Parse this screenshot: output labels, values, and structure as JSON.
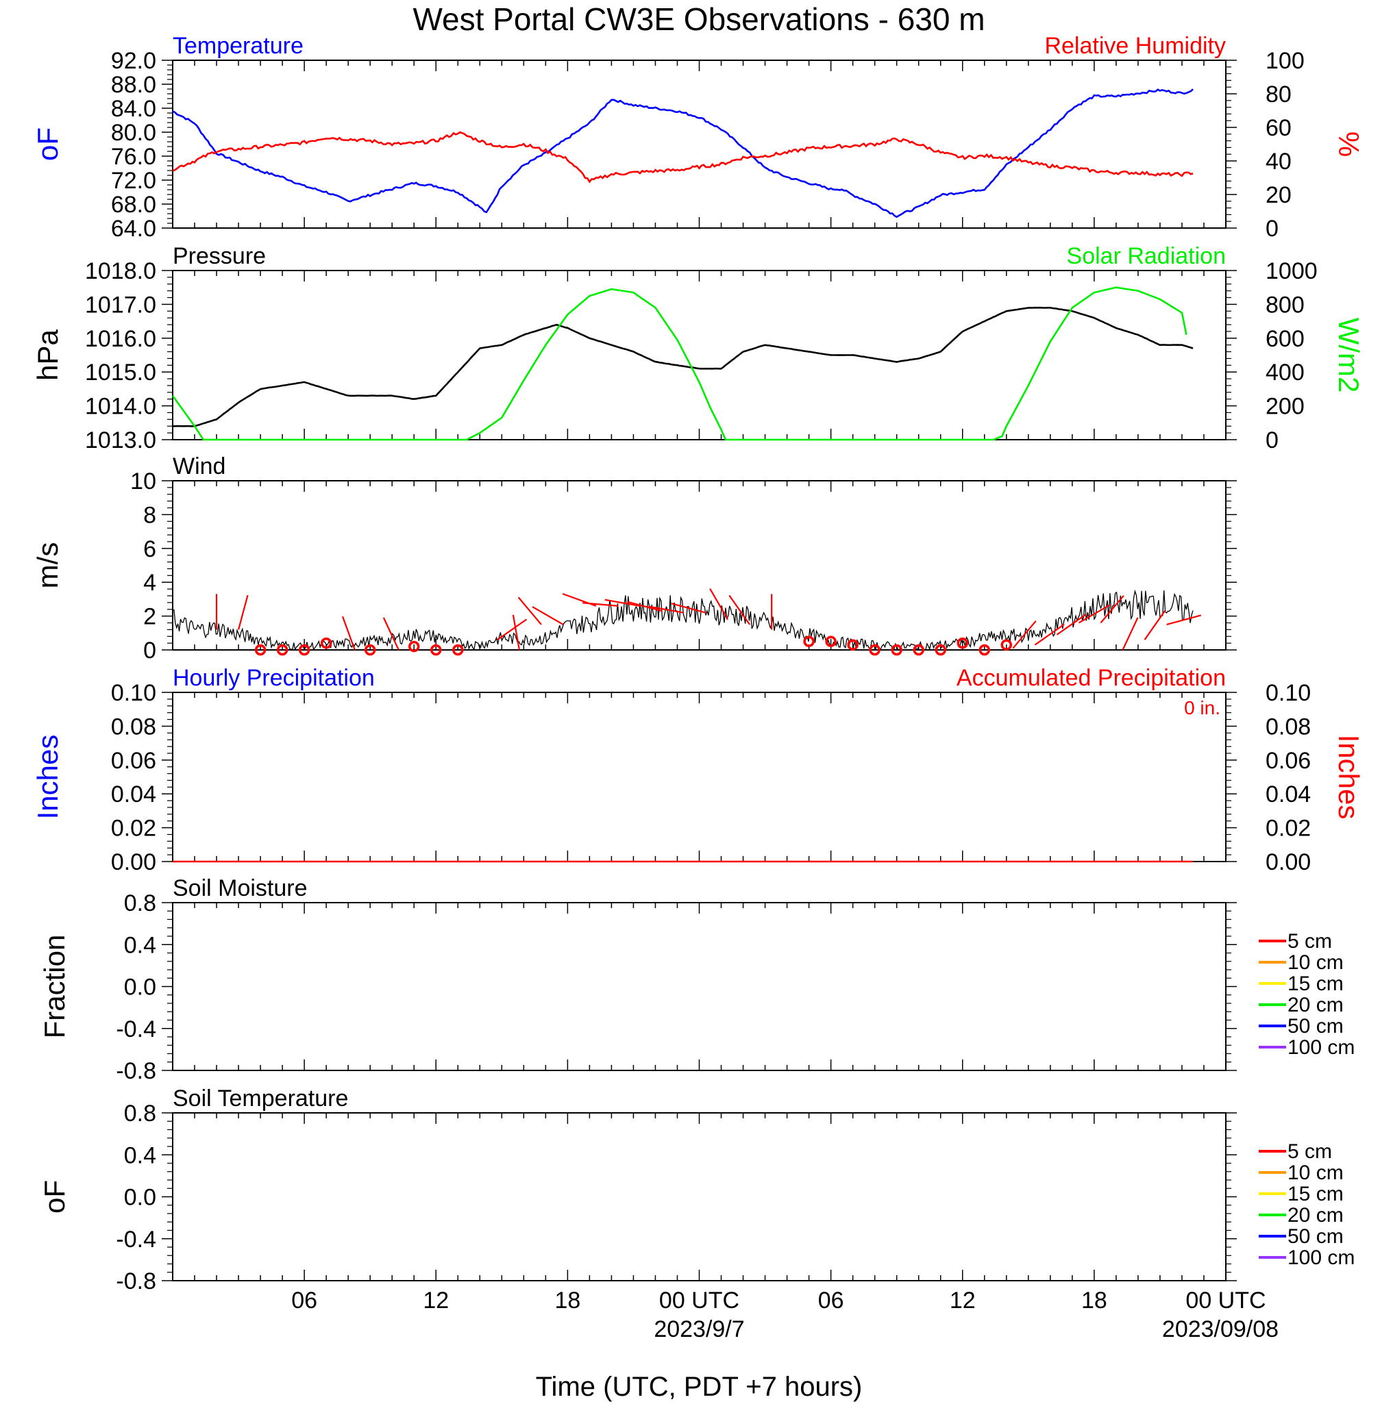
{
  "title": "West Portal CW3E Observations - 630 m",
  "xlabel": "Time (UTC, PDT +7 hours)",
  "x_ticks": [
    "06",
    "12",
    "18",
    "00 UTC",
    "06",
    "12",
    "18",
    "00 UTC"
  ],
  "x_dates": [
    "2023/9/7",
    "2023/09/08"
  ],
  "colors": {
    "temperature": "#0000ff",
    "rh": "#ff0000",
    "pressure": "#000000",
    "solar": "#00ee00",
    "wind": "#000000",
    "barb": "#ff0000"
  },
  "chart_data": [
    {
      "type": "line",
      "name": "temperature-rh",
      "title_left": "Temperature",
      "title_right": "Relative Humidity",
      "ylabel_left": "oF",
      "ylabel_right": "%",
      "yticks_left": [
        "92.0",
        "88.0",
        "84.0",
        "80.0",
        "76.0",
        "72.0",
        "68.0",
        "64.0"
      ],
      "yticks_right": [
        "100",
        "80",
        "60",
        "40",
        "20",
        "0"
      ],
      "ylim_left": [
        64,
        92
      ],
      "ylim_right": [
        0,
        100
      ],
      "series": [
        {
          "axis": "left",
          "color": "#0000ff",
          "x": [
            0,
            1,
            2,
            3,
            4,
            5,
            6,
            7,
            8,
            9,
            10,
            11,
            12,
            13,
            14,
            14.3,
            15,
            16,
            17,
            18,
            19,
            20,
            21,
            22,
            23,
            24,
            25,
            26,
            27,
            28,
            29,
            30,
            30.5,
            31,
            32,
            33,
            34,
            35,
            36,
            37,
            38,
            39,
            40,
            41,
            42,
            43,
            44,
            45,
            46,
            46.5
          ],
          "values": [
            83.5,
            81.5,
            76.5,
            75,
            73.5,
            72.5,
            71,
            70,
            68.5,
            69.5,
            70.5,
            71.5,
            71,
            70,
            67.5,
            66.5,
            71,
            74.5,
            76.5,
            79,
            81.5,
            85.5,
            84.5,
            84,
            83.5,
            82.5,
            80.5,
            77.5,
            74,
            72.5,
            71.5,
            70.5,
            70.5,
            69.5,
            68,
            66,
            67.5,
            69.5,
            70,
            70.5,
            74.5,
            77.5,
            80.5,
            84,
            86,
            86,
            86.5,
            87,
            86.5,
            87
          ]
        },
        {
          "axis": "right",
          "color": "#ff0000",
          "x": [
            0,
            1,
            2,
            3,
            4,
            5,
            6,
            7,
            8,
            9,
            10,
            11,
            12,
            13,
            14,
            15,
            16,
            17,
            18,
            19,
            20,
            21,
            22,
            23,
            24,
            25,
            26,
            27,
            28,
            29,
            30,
            31,
            32,
            33,
            34,
            35,
            36,
            37,
            38,
            39,
            40,
            41,
            42,
            43,
            44,
            45,
            46,
            46.5
          ],
          "values": [
            35,
            40,
            46,
            47,
            48.5,
            49.5,
            51,
            54,
            53,
            52,
            50,
            50.5,
            52,
            57,
            52,
            48,
            50,
            46,
            41,
            28,
            32,
            33,
            34,
            34.5,
            36.5,
            38,
            42,
            43,
            45,
            47.5,
            48.5,
            49,
            50,
            53,
            50,
            45,
            42,
            43,
            42,
            39,
            37,
            36,
            34,
            33,
            33,
            32,
            32,
            33
          ]
        }
      ]
    },
    {
      "type": "line",
      "name": "pressure-solar",
      "title_left": "Pressure",
      "title_right": "Solar Radiation",
      "ylabel_left": "hPa",
      "ylabel_right": "W/m2",
      "yticks_left": [
        "1018.0",
        "1017.0",
        "1016.0",
        "1015.0",
        "1014.0",
        "1013.0"
      ],
      "yticks_right": [
        "1000",
        "800",
        "600",
        "400",
        "200",
        "0"
      ],
      "ylim_left": [
        1013,
        1018
      ],
      "ylim_right": [
        0,
        1000
      ],
      "series": [
        {
          "axis": "left",
          "color": "#000000",
          "x": [
            0,
            1,
            2,
            3,
            4,
            5,
            6,
            7,
            8,
            9,
            10,
            11,
            12,
            13,
            14,
            15,
            16,
            17,
            17.5,
            18,
            19,
            20,
            21,
            22,
            23,
            24,
            25,
            26,
            27,
            28,
            29,
            30,
            31,
            32,
            33,
            34,
            35,
            36,
            37,
            38,
            39,
            40,
            41,
            42,
            43,
            44,
            45,
            46,
            46.5
          ],
          "values": [
            1013.4,
            1013.4,
            1013.6,
            1014.1,
            1014.5,
            1014.6,
            1014.7,
            1014.5,
            1014.3,
            1014.3,
            1014.3,
            1014.2,
            1014.3,
            1015.0,
            1015.7,
            1015.8,
            1016.1,
            1016.3,
            1016.4,
            1016.3,
            1016.0,
            1015.8,
            1015.6,
            1015.3,
            1015.2,
            1015.1,
            1015.1,
            1015.6,
            1015.8,
            1015.7,
            1015.6,
            1015.5,
            1015.5,
            1015.4,
            1015.3,
            1015.4,
            1015.6,
            1016.2,
            1016.5,
            1016.8,
            1016.9,
            1016.9,
            1016.8,
            1016.6,
            1016.3,
            1016.1,
            1015.8,
            1015.8,
            1015.7
          ]
        },
        {
          "axis": "right",
          "color": "#00ee00",
          "x": [
            0,
            1,
            1.4,
            2,
            6,
            10,
            12,
            13.4,
            14,
            15,
            16,
            17,
            18,
            19,
            20,
            21,
            22,
            23,
            24,
            24.5,
            25,
            25.2,
            26,
            30,
            34,
            36,
            37.4,
            37.8,
            38,
            39,
            40,
            41,
            42,
            43,
            44,
            45,
            46,
            46.2
          ],
          "values": [
            260,
            80,
            0,
            0,
            0,
            0,
            0,
            0,
            40,
            130,
            350,
            560,
            740,
            850,
            890,
            870,
            780,
            590,
            340,
            190,
            60,
            0,
            0,
            0,
            0,
            0,
            0,
            20,
            80,
            320,
            580,
            780,
            870,
            900,
            880,
            830,
            750,
            620
          ]
        }
      ]
    },
    {
      "type": "line",
      "name": "wind",
      "title_left": "Wind",
      "ylabel_left": "m/s",
      "yticks_left": [
        "10",
        "8",
        "6",
        "4",
        "2",
        "0"
      ],
      "ylim_left": [
        0,
        10
      ],
      "series": [
        {
          "axis": "left",
          "color": "#000000",
          "x": [
            0,
            1,
            2,
            3,
            4,
            5,
            6,
            7,
            8,
            9,
            10,
            11,
            12,
            13,
            14,
            15,
            16,
            17,
            18,
            19,
            20,
            21,
            22,
            23,
            24,
            25,
            26,
            27,
            28,
            29,
            30,
            31,
            32,
            33,
            34,
            35,
            36,
            37,
            38,
            39,
            40,
            41,
            42,
            43,
            44,
            45,
            46,
            46.5
          ],
          "values": [
            1.8,
            1.2,
            1.3,
            0.9,
            0.6,
            0.3,
            0.2,
            0.3,
            0.4,
            0.5,
            0.6,
            0.9,
            0.8,
            0.4,
            0.3,
            0.7,
            0.6,
            0.7,
            1.4,
            1.6,
            2.3,
            2.5,
            2.3,
            2.5,
            2.3,
            2.2,
            2.0,
            1.6,
            1.2,
            0.9,
            0.5,
            0.4,
            0.3,
            0.2,
            0.2,
            0.3,
            0.4,
            0.7,
            0.8,
            0.9,
            1.2,
            1.9,
            2.5,
            2.6,
            2.7,
            2.8,
            2.4,
            2.2
          ]
        }
      ],
      "barbs": [
        {
          "x": 2,
          "y": 1.2,
          "angle": 0
        },
        {
          "x": 3,
          "y": 1.2,
          "angle": 15
        },
        {
          "x": 8.3,
          "y": 0.0,
          "angle": -20
        },
        {
          "x": 10.3,
          "y": 0.0,
          "angle": -25
        },
        {
          "x": 14.8,
          "y": 0.6,
          "angle": 55
        },
        {
          "x": 15.8,
          "y": 0.0,
          "angle": -10
        },
        {
          "x": 16.8,
          "y": 1.5,
          "angle": -40
        },
        {
          "x": 17.8,
          "y": 1.5,
          "angle": -60
        },
        {
          "x": 19.3,
          "y": 2.6,
          "angle": -70
        },
        {
          "x": 20.3,
          "y": 2.6,
          "angle": -85
        },
        {
          "x": 21.3,
          "y": 2.6,
          "angle": -80
        },
        {
          "x": 22.3,
          "y": 2.3,
          "angle": -75
        },
        {
          "x": 23.3,
          "y": 2.2,
          "angle": -80
        },
        {
          "x": 24.3,
          "y": 2.2,
          "angle": -75
        },
        {
          "x": 25.3,
          "y": 1.8,
          "angle": -30
        },
        {
          "x": 26.3,
          "y": 1.5,
          "angle": -35
        },
        {
          "x": 27.3,
          "y": 1.2,
          "angle": 0
        },
        {
          "x": 38.3,
          "y": 0.1,
          "angle": 40
        },
        {
          "x": 39.3,
          "y": 0.3,
          "angle": 55
        },
        {
          "x": 40.3,
          "y": 0.9,
          "angle": 55
        },
        {
          "x": 41.3,
          "y": 1.6,
          "angle": 60
        },
        {
          "x": 42.3,
          "y": 1.6,
          "angle": 40
        },
        {
          "x": 43.3,
          "y": 0.0,
          "angle": 25
        },
        {
          "x": 44.3,
          "y": 0.6,
          "angle": 35
        },
        {
          "x": 45.3,
          "y": 1.5,
          "angle": 75
        }
      ],
      "calm": [
        4,
        5,
        6,
        7,
        9,
        11,
        12,
        13,
        29,
        30,
        31,
        32,
        33,
        34,
        35,
        36,
        37,
        38
      ],
      "calm_y": [
        0,
        0,
        0,
        0.4,
        0,
        0.2,
        0,
        0,
        0.5,
        0.5,
        0.3,
        0,
        0,
        0,
        0,
        0.4,
        0,
        0.3
      ]
    },
    {
      "type": "line",
      "name": "precipitation",
      "title_left": "Hourly Precipitation",
      "title_right": "Accumulated Precipitation",
      "annotation": "0 in.",
      "ylabel_left": "Inches",
      "ylabel_right": "Inches",
      "yticks_left": [
        "0.10",
        "0.08",
        "0.06",
        "0.04",
        "0.02",
        "0.00"
      ],
      "yticks_right": [
        "0.10",
        "0.08",
        "0.06",
        "0.04",
        "0.02",
        "0.00"
      ],
      "ylim_left": [
        0,
        0.1
      ],
      "series": [
        {
          "axis": "left",
          "color": "#ff0000",
          "x": [
            0,
            46.5
          ],
          "values": [
            0,
            0
          ]
        }
      ]
    },
    {
      "type": "line",
      "name": "soil-moisture",
      "title_left": "Soil Moisture",
      "ylabel_left": "Fraction",
      "yticks_left": [
        "0.8",
        "0.4",
        "0.0",
        "-0.4",
        "-0.8"
      ],
      "legend": [
        {
          "label": "5 cm",
          "color": "#ff0000"
        },
        {
          "label": "10 cm",
          "color": "#ff9900"
        },
        {
          "label": "15 cm",
          "color": "#ffee00"
        },
        {
          "label": "20 cm",
          "color": "#00ee00"
        },
        {
          "label": "50 cm",
          "color": "#0000ff"
        },
        {
          "label": "100 cm",
          "color": "#9933ff"
        }
      ]
    },
    {
      "type": "line",
      "name": "soil-temperature",
      "title_left": "Soil Temperature",
      "ylabel_left": "oF",
      "yticks_left": [
        "0.8",
        "0.4",
        "0.0",
        "-0.4",
        "-0.8"
      ],
      "legend": [
        {
          "label": "5 cm",
          "color": "#ff0000"
        },
        {
          "label": "10 cm",
          "color": "#ff9900"
        },
        {
          "label": "15 cm",
          "color": "#ffee00"
        },
        {
          "label": "20 cm",
          "color": "#00ee00"
        },
        {
          "label": "50 cm",
          "color": "#0000ff"
        },
        {
          "label": "100 cm",
          "color": "#9933ff"
        }
      ]
    }
  ]
}
